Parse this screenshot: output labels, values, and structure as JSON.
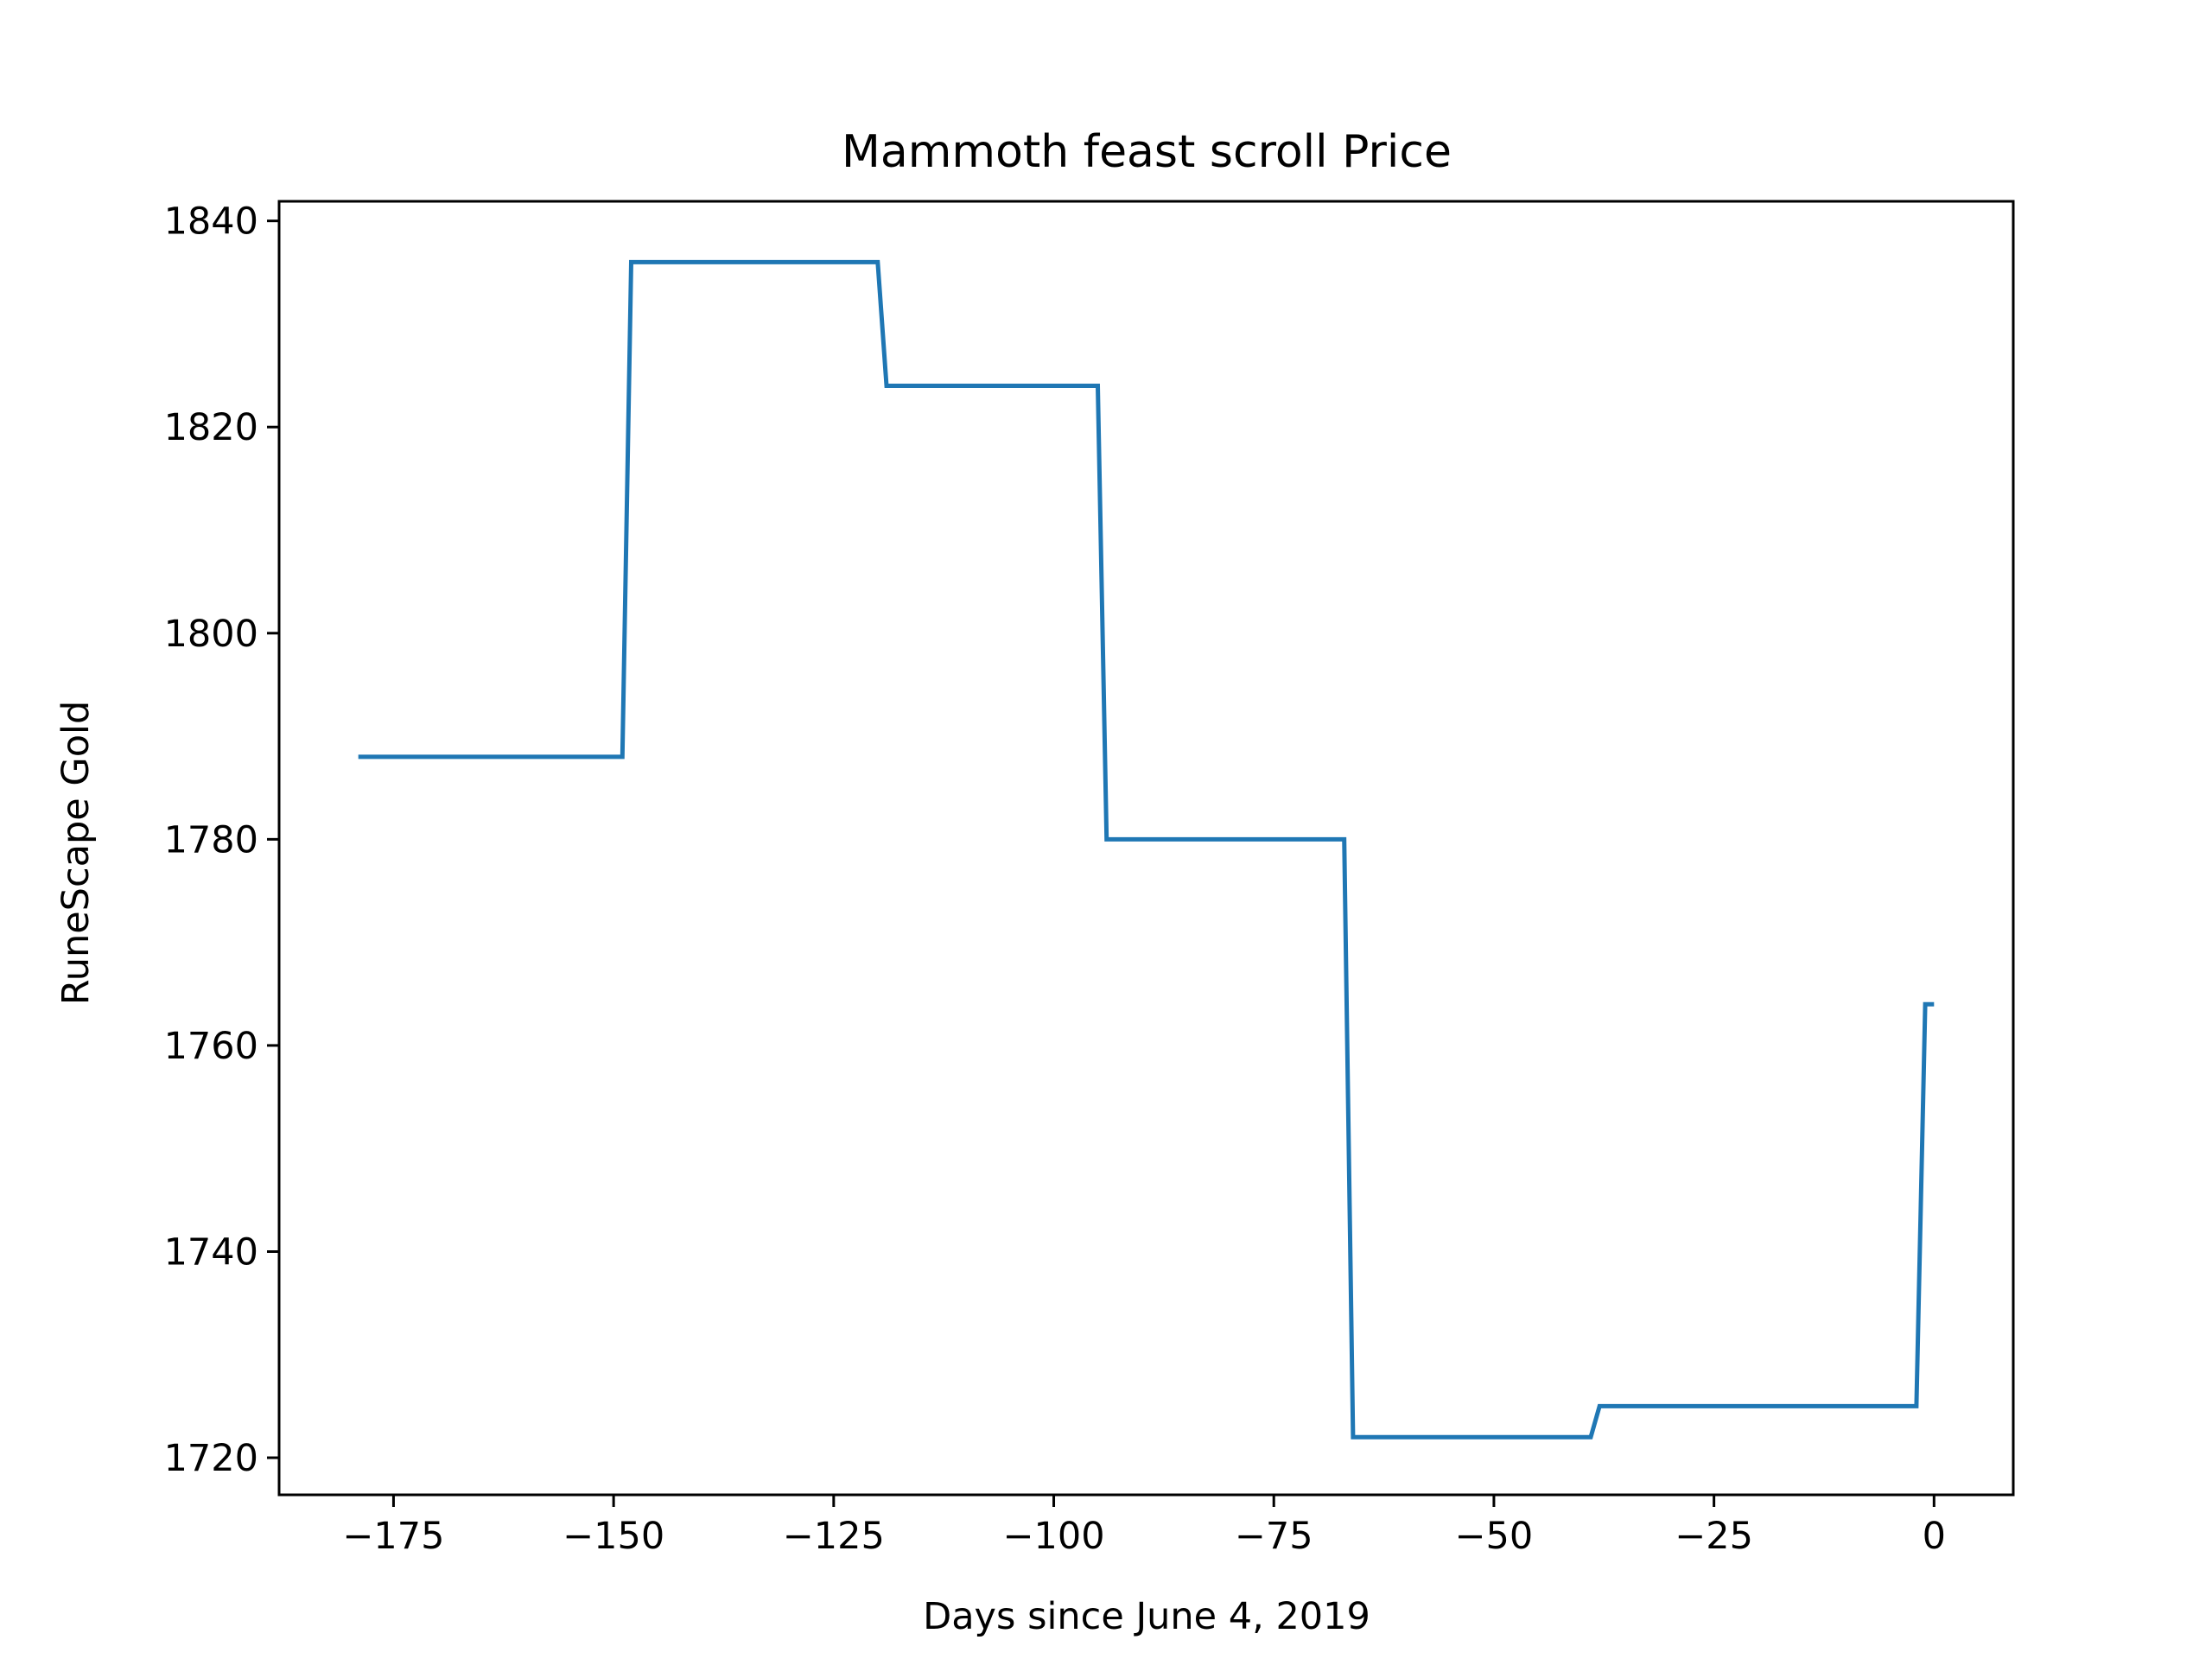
{
  "chart_data": {
    "type": "line",
    "title": "Mammoth feast scroll Price",
    "xlabel": "Days since June 4, 2019",
    "ylabel": "RuneScape Gold",
    "xlim": [
      -188,
      9
    ],
    "ylim": [
      1716.4,
      1841.9
    ],
    "xticks": [
      -175,
      -150,
      -125,
      -100,
      -75,
      -50,
      -25,
      0
    ],
    "xtick_labels": [
      "−175",
      "−150",
      "−125",
      "−100",
      "−75",
      "−50",
      "−25",
      "0"
    ],
    "yticks": [
      1720,
      1740,
      1760,
      1780,
      1800,
      1820,
      1840
    ],
    "ytick_labels": [
      "1720",
      "1740",
      "1760",
      "1780",
      "1800",
      "1820",
      "1840"
    ],
    "grid": false,
    "series": [
      {
        "color": "#1f77b4",
        "x": [
          -179,
          -149,
          -148,
          -120,
          -119,
          -95,
          -94,
          -67,
          -66,
          -39,
          -38,
          -2,
          -1,
          0
        ],
        "y": [
          1788,
          1788,
          1836,
          1836,
          1824,
          1824,
          1780,
          1780,
          1722,
          1722,
          1725,
          1725,
          1764,
          1764
        ]
      }
    ]
  }
}
